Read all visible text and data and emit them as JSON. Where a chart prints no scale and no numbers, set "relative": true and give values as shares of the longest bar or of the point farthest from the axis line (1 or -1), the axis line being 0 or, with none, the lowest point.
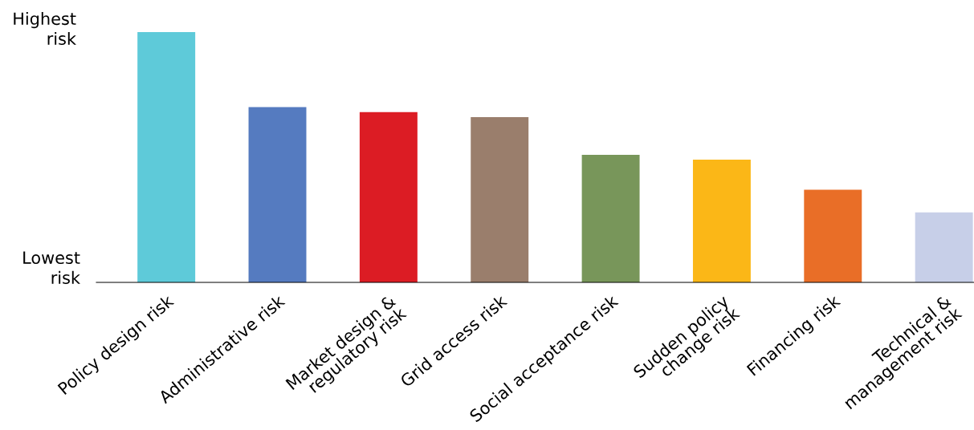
{
  "chart_data": {
    "type": "bar",
    "relative": true,
    "categories": [
      "Policy design risk",
      "Administrative risk",
      "Market design &\nregulatory risk",
      "Grid access risk",
      "Social acceptance risk",
      "Sudden policy\nchange risk",
      "Financing risk",
      "Technical &\nmanagement risk"
    ],
    "values": [
      1,
      0.7,
      0.68,
      0.66,
      0.51,
      0.49,
      0.37,
      0.28
    ],
    "colors": [
      "#5ecad9",
      "#557bc0",
      "#dc1c24",
      "#9a7e6c",
      "#78965a",
      "#fbb717",
      "#e96e27",
      "#c7cfe8"
    ],
    "annotations": [
      "Highest\nrisk",
      "Lowest\nrisk"
    ],
    "grid": false,
    "legend": false
  }
}
